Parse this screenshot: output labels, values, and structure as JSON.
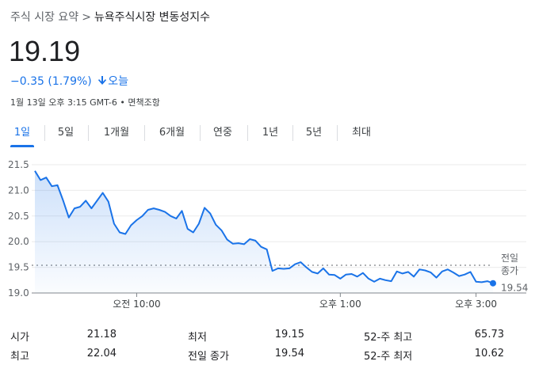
{
  "breadcrumb": {
    "root": "주식 시장 요약",
    "separator": ">",
    "current": "뉴욕주식시장 변동성지수"
  },
  "quote": {
    "price": "19.19",
    "change": "−0.35 (1.79%)",
    "direction": "down",
    "period": "오늘",
    "timestamp": "1월 13일 오후 3:15 GMT-6 • 면책조항"
  },
  "tabs": [
    {
      "label": "1일",
      "active": true
    },
    {
      "label": "5일",
      "active": false
    },
    {
      "label": "1개월",
      "active": false
    },
    {
      "label": "6개월",
      "active": false
    },
    {
      "label": "연중",
      "active": false
    },
    {
      "label": "1년",
      "active": false
    },
    {
      "label": "5년",
      "active": false
    },
    {
      "label": "최대",
      "active": false
    }
  ],
  "chart_data": {
    "type": "area",
    "title": "",
    "ylim": [
      19.0,
      21.5
    ],
    "y_ticks": [
      "21.5",
      "21.0",
      "20.5",
      "20.0",
      "19.5",
      "19.0"
    ],
    "x_ticks": [
      "오전 10:00",
      "오후 1:00",
      "오후 3:00"
    ],
    "prev_close_label": [
      "전일",
      "종가"
    ],
    "prev_close": 19.54,
    "prev_close_display": "19.54",
    "line_color": "#1a73e8",
    "x_start": "08:30",
    "x": [
      "08:30",
      "08:35",
      "08:40",
      "08:45",
      "08:50",
      "08:55",
      "09:00",
      "09:05",
      "09:10",
      "09:15",
      "09:20",
      "09:25",
      "09:30",
      "09:35",
      "09:40",
      "09:45",
      "09:50",
      "09:55",
      "10:00",
      "10:05",
      "10:10",
      "10:15",
      "10:20",
      "10:25",
      "10:30",
      "10:35",
      "10:40",
      "10:45",
      "10:50",
      "10:55",
      "11:00",
      "11:05",
      "11:10",
      "11:15",
      "11:20",
      "11:25",
      "11:30",
      "11:35",
      "11:40",
      "11:45",
      "11:50",
      "11:55",
      "12:00",
      "12:05",
      "12:10",
      "12:15",
      "12:20",
      "12:25",
      "12:30",
      "12:35",
      "12:40",
      "12:45",
      "12:50",
      "12:55",
      "13:00",
      "13:05",
      "13:10",
      "13:15",
      "13:20",
      "13:25",
      "13:30",
      "13:35",
      "13:40",
      "13:45",
      "13:50",
      "13:55",
      "14:00",
      "14:05",
      "14:10",
      "14:15",
      "14:20",
      "14:25",
      "14:30",
      "14:35",
      "14:40",
      "14:45",
      "14:50",
      "14:55",
      "15:00",
      "15:05",
      "15:10",
      "15:15"
    ],
    "values": [
      21.38,
      21.2,
      21.25,
      21.08,
      21.1,
      20.8,
      20.47,
      20.65,
      20.68,
      20.8,
      20.65,
      20.8,
      20.95,
      20.78,
      20.35,
      20.18,
      20.15,
      20.32,
      20.42,
      20.5,
      20.62,
      20.65,
      20.62,
      20.58,
      20.5,
      20.45,
      20.6,
      20.25,
      20.18,
      20.35,
      20.66,
      20.55,
      20.33,
      20.22,
      20.04,
      19.96,
      19.97,
      19.95,
      20.05,
      20.02,
      19.9,
      19.85,
      19.43,
      19.48,
      19.47,
      19.48,
      19.56,
      19.6,
      19.5,
      19.41,
      19.38,
      19.48,
      19.36,
      19.35,
      19.28,
      19.36,
      19.37,
      19.32,
      19.39,
      19.28,
      19.22,
      19.28,
      19.25,
      19.23,
      19.42,
      19.38,
      19.41,
      19.32,
      19.46,
      19.44,
      19.4,
      19.3,
      19.42,
      19.46,
      19.4,
      19.33,
      19.36,
      19.41,
      19.22,
      19.21,
      19.23,
      19.19
    ]
  },
  "stats": {
    "open": {
      "label": "시가",
      "value": "21.18"
    },
    "high": {
      "label": "최고",
      "value": "22.04"
    },
    "low": {
      "label": "최저",
      "value": "19.15"
    },
    "prev_close": {
      "label": "전일 종가",
      "value": "19.54"
    },
    "w52_high": {
      "label": "52-주 최고",
      "value": "65.73"
    },
    "w52_low": {
      "label": "52-주 최저",
      "value": "10.62"
    }
  }
}
